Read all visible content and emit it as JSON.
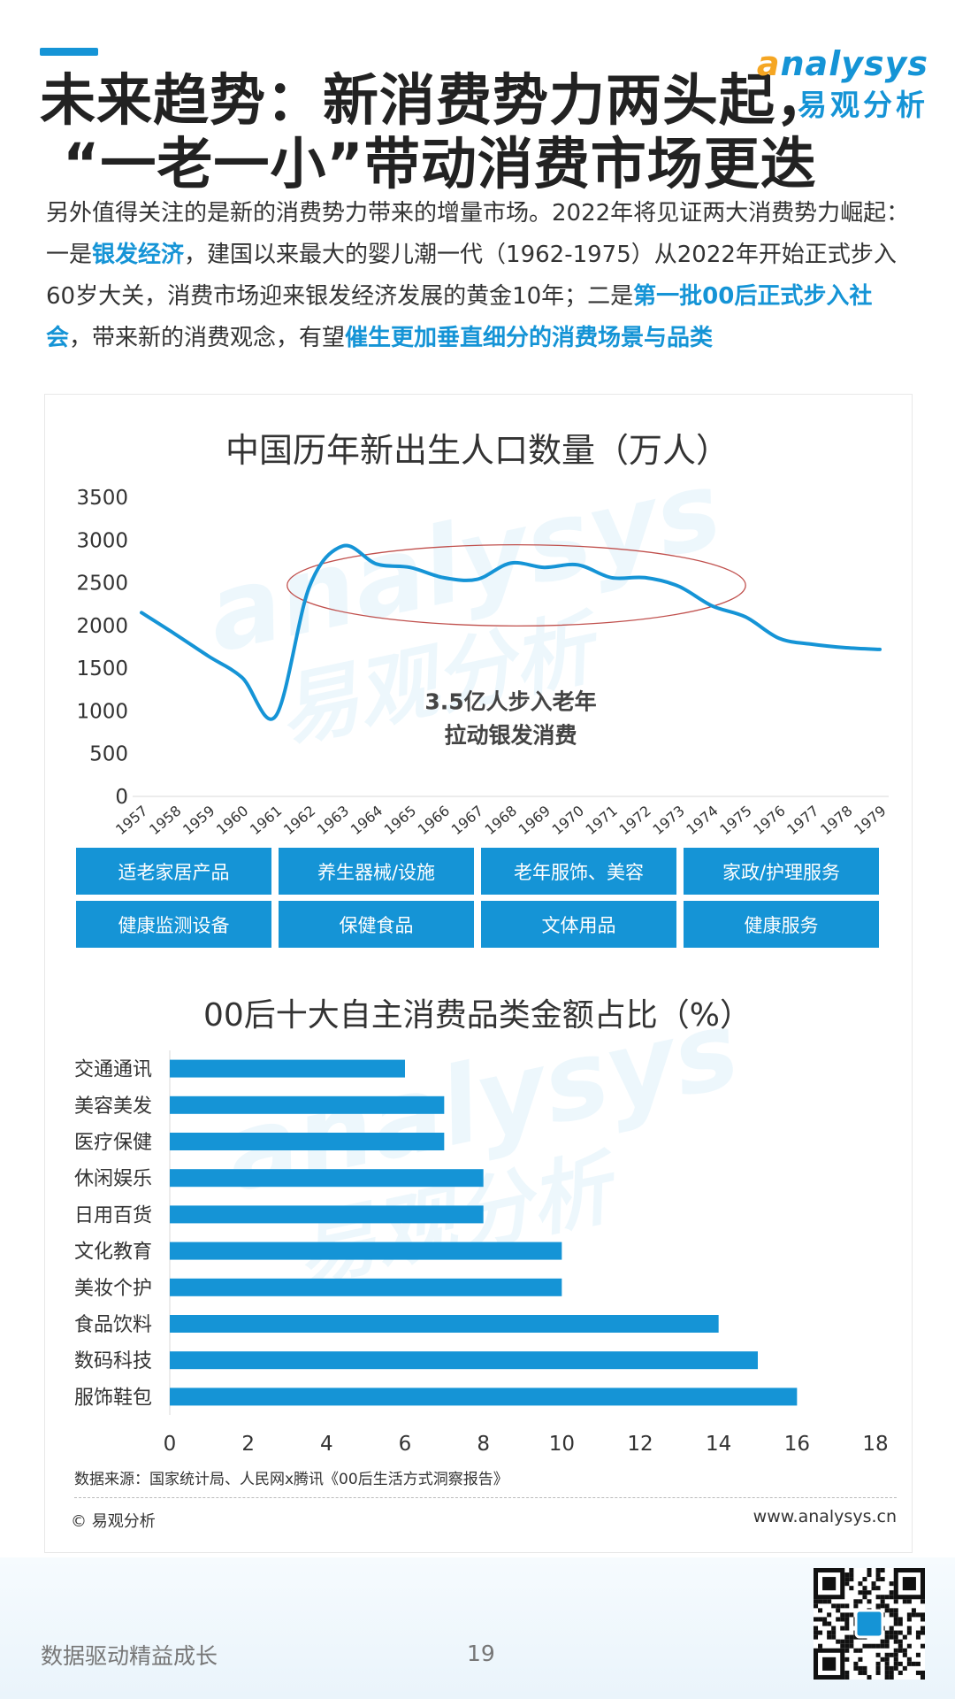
{
  "header": {
    "title_line1": "未来趋势：新消费势力两头起，",
    "title_line2": "“一老一小”带动消费市场更迭"
  },
  "logo": {
    "brand_en_initial": "a",
    "brand_en_rest": "nalysys",
    "brand_cn": "易观分析"
  },
  "intro": {
    "t1": "另外值得关注的是新的消费势力带来的增量市场。2022年将见证两大消费势力崛起：一是",
    "h1": "银发经济",
    "t2": "，建国以来最大的婴儿潮一代（1962-1975）从2022年开始正式步入60岁大关，消费市场迎来银发经济发展的黄金10年；二是",
    "h2": "第一批00后正式步入社会",
    "t3": "，带来新的消费观念，有望",
    "h3": "催生更加垂直细分的消费场景与品类"
  },
  "colors": {
    "accent": "#1594d6",
    "ellipse": "#c0504d",
    "logo_orange": "#f5a623"
  },
  "chart_data": [
    {
      "type": "line",
      "title": "中国历年新出生人口数量（万人）",
      "x": [
        "1957",
        "1958",
        "1959",
        "1960",
        "1961",
        "1962",
        "1963",
        "1964",
        "1965",
        "1966",
        "1967",
        "1968",
        "1969",
        "1970",
        "1971",
        "1972",
        "1973",
        "1974",
        "1975",
        "1976",
        "1977",
        "1978",
        "1979"
      ],
      "values": [
        2150,
        1900,
        1640,
        1390,
        940,
        2450,
        2930,
        2720,
        2680,
        2560,
        2540,
        2730,
        2680,
        2710,
        2560,
        2560,
        2460,
        2230,
        2100,
        1850,
        1780,
        1740,
        1720
      ],
      "ylim": [
        0,
        3500
      ],
      "yticks": [
        "0",
        "500",
        "1000",
        "1500",
        "2000",
        "2500",
        "3000",
        "3500"
      ],
      "annotation_line1": "3.5亿人步入老年",
      "annotation_line2": "拉动银发消费",
      "highlight": "ellipse around 1962-1975"
    },
    {
      "type": "bar",
      "orientation": "horizontal",
      "title": "00后十大自主消费品类金额占比（%）",
      "categories": [
        "交通通讯",
        "美容美发",
        "医疗保健",
        "休闲娱乐",
        "日用百货",
        "文化教育",
        "美妆个护",
        "食品饮料",
        "数码科技",
        "服饰鞋包"
      ],
      "values": [
        6,
        7,
        7,
        8,
        8,
        10,
        10,
        14,
        15,
        16
      ],
      "xlim": [
        0,
        18
      ],
      "xticks": [
        "0",
        "2",
        "4",
        "6",
        "8",
        "10",
        "12",
        "14",
        "16",
        "18"
      ]
    }
  ],
  "categories_grid": [
    "适老家居产品",
    "养生器械/设施",
    "老年服饰、美容",
    "家政/护理服务",
    "健康监测设备",
    "保健食品",
    "文体用品",
    "健康服务"
  ],
  "source_text": "数据来源：国家统计局、人民网x腾讯《00后生活方式洞察报告》",
  "copyright": "© 易观分析",
  "website": "www.analysys.cn",
  "footer": {
    "slogan": "数据驱动精益成长",
    "page": "19"
  }
}
